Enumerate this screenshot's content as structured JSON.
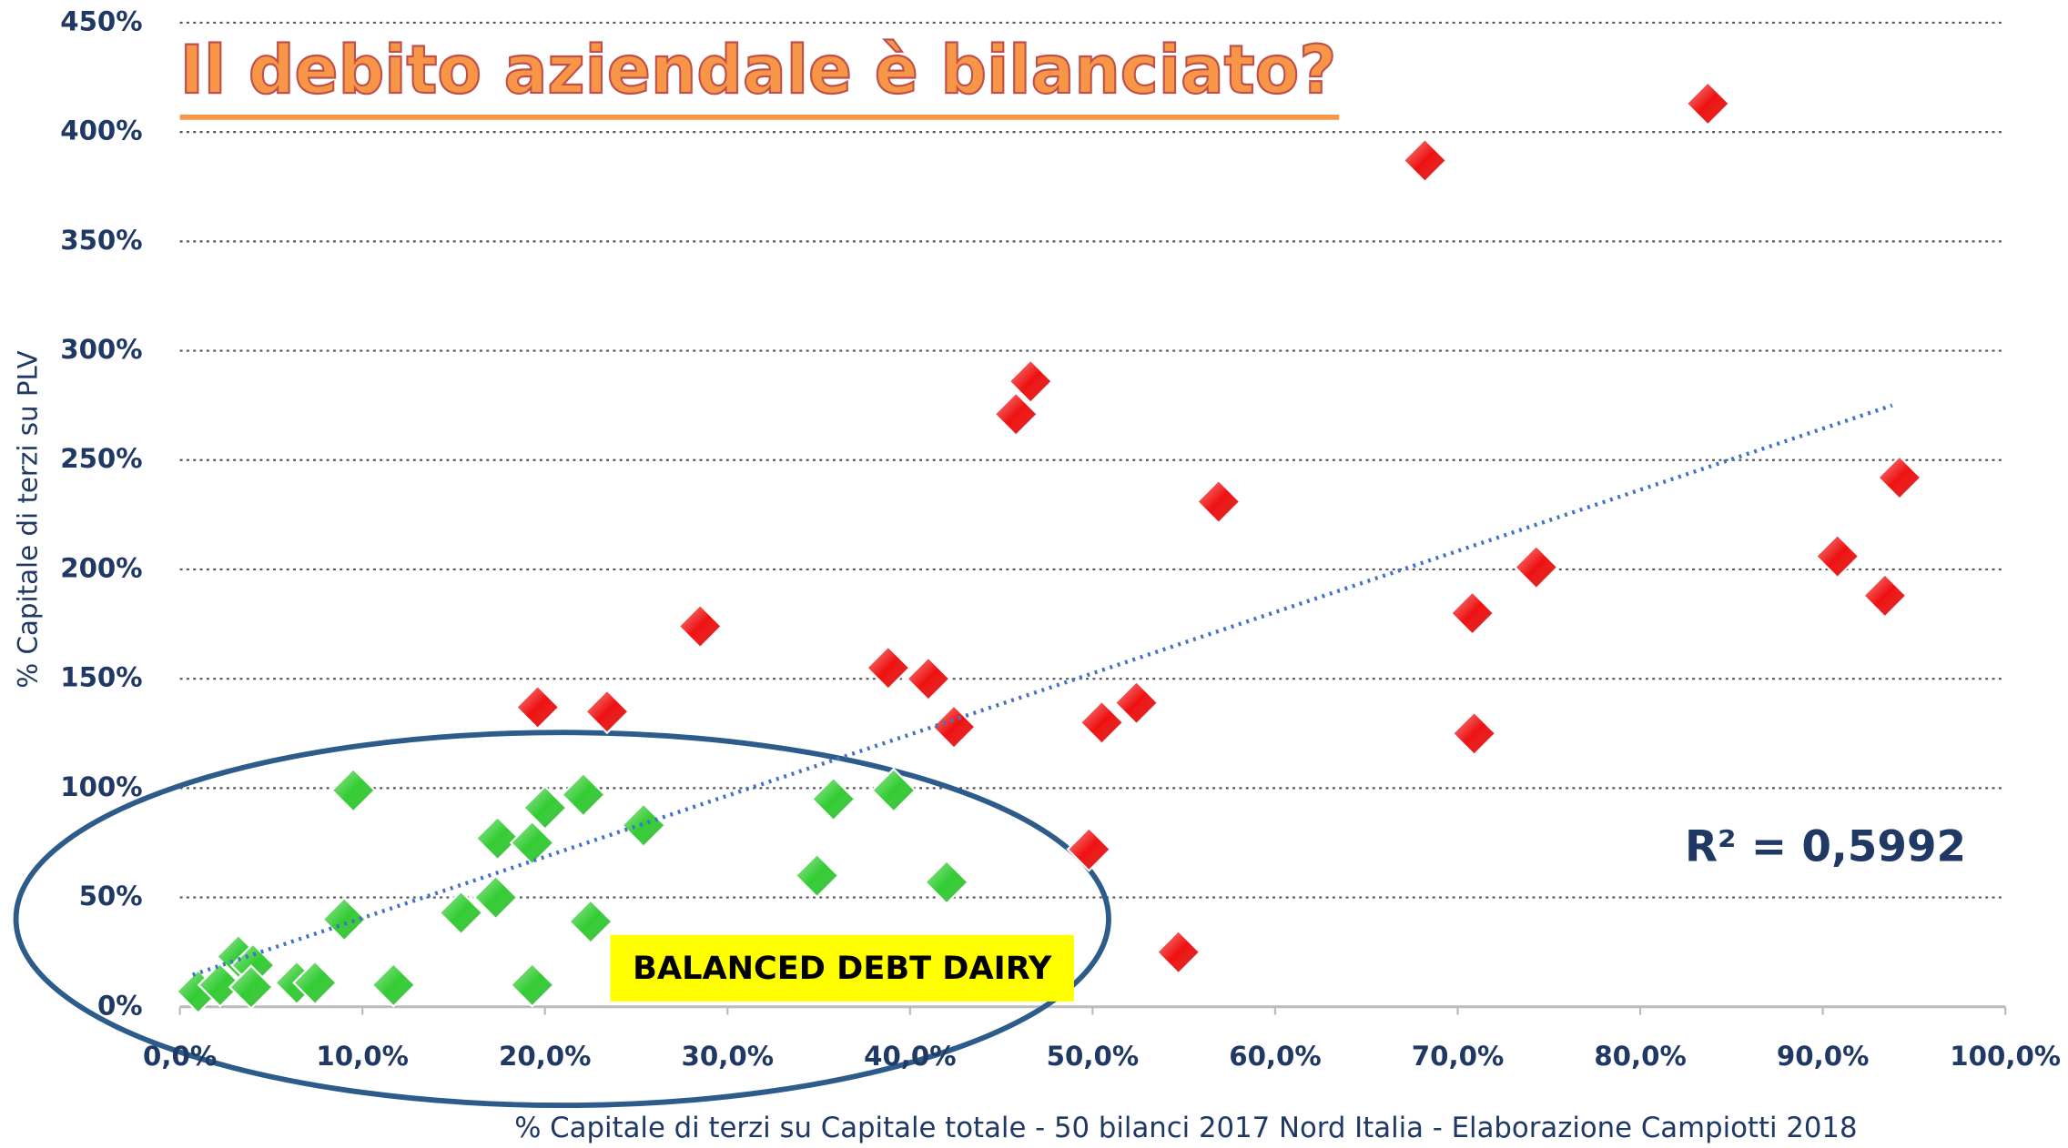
{
  "chart_data": {
    "type": "scatter",
    "title": "Il debito aziendale è bilanciato?",
    "x_label": "% Capitale di terzi su Capitale totale - 50 bilanci 2017 Nord Italia -  Elaborazione Campiotti 2018",
    "y_label": "% Capitale di terzi su PLV",
    "annotations": [
      "R² = 0,5992",
      "BALANCED DEBT DAIRY"
    ],
    "xlim": [
      0,
      100
    ],
    "ylim": [
      0,
      450
    ],
    "xticks": [
      {
        "value": 0,
        "label": "0,0%"
      },
      {
        "value": 10,
        "label": "10,0%"
      },
      {
        "value": 20,
        "label": "20,0%"
      },
      {
        "value": 30,
        "label": "30,0%"
      },
      {
        "value": 40,
        "label": "40,0%"
      },
      {
        "value": 50,
        "label": "50,0%"
      },
      {
        "value": 60,
        "label": "60,0%"
      },
      {
        "value": 70,
        "label": "70,0%"
      },
      {
        "value": 80,
        "label": "80,0%"
      },
      {
        "value": 90,
        "label": "90,0%"
      },
      {
        "value": 100,
        "label": "100,0%"
      }
    ],
    "yticks": [
      {
        "value": 0,
        "label": "0%"
      },
      {
        "value": 50,
        "label": "50%"
      },
      {
        "value": 100,
        "label": "100%"
      },
      {
        "value": 150,
        "label": "150%"
      },
      {
        "value": 200,
        "label": "200%"
      },
      {
        "value": 250,
        "label": "250%"
      },
      {
        "value": 300,
        "label": "300%"
      },
      {
        "value": 350,
        "label": "350%"
      },
      {
        "value": 400,
        "label": "400%"
      },
      {
        "value": 450,
        "label": "450%"
      }
    ],
    "grid": true,
    "series": [
      {
        "color": "#ee1111",
        "x": [
          83.7,
          68.2,
          46.6,
          45.8,
          56.9,
          94.2,
          90.8,
          93.4,
          74.3,
          70.8,
          70.9,
          28.5,
          19.6,
          23.4,
          38.8,
          41.0,
          42.4,
          50.5,
          52.4,
          49.8,
          54.7
        ],
        "values": [
          413,
          387,
          286,
          271,
          231,
          242,
          206,
          188,
          201,
          180,
          125,
          174,
          137,
          135,
          155,
          150,
          128,
          130,
          139,
          72,
          25
        ]
      },
      {
        "color": "#33cc33",
        "x": [
          9.5,
          22.1,
          20.0,
          17.4,
          19.3,
          25.4,
          35.8,
          39.1,
          34.9,
          42.0,
          17.3,
          15.4,
          22.5,
          9.0,
          3.2,
          4.0,
          1.0,
          2.2,
          3.9,
          6.4,
          7.4,
          11.7,
          19.3
        ],
        "values": [
          99,
          97,
          91,
          77,
          75,
          83,
          95,
          99,
          60,
          57,
          50,
          43,
          39,
          40,
          23,
          19,
          7,
          10,
          9,
          11,
          11,
          10,
          10
        ]
      }
    ],
    "trendline": {
      "color": "#4472c4",
      "x": [
        0.7,
        93.8
      ],
      "values": [
        14.6,
        275
      ]
    }
  }
}
